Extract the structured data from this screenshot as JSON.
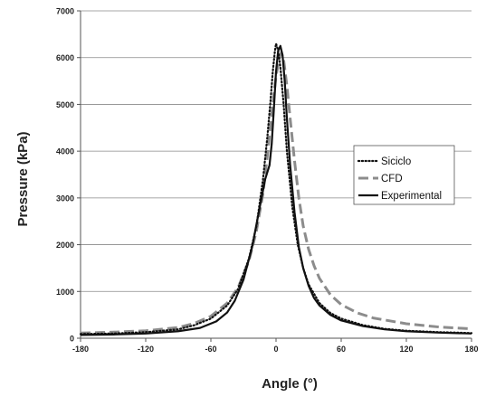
{
  "chart_data": {
    "type": "line",
    "title": "",
    "xlabel": "Angle (°)",
    "ylabel": "Pressure (kPa)",
    "xlim": [
      -180,
      180
    ],
    "ylim": [
      0,
      7000
    ],
    "x_ticks": [
      -180,
      -120,
      -60,
      0,
      60,
      120,
      180
    ],
    "y_ticks": [
      0,
      1000,
      2000,
      3000,
      4000,
      5000,
      6000,
      7000
    ],
    "grid": "horizontal",
    "legend_position": "right",
    "series": [
      {
        "name": "Siciclo",
        "style": "dotted",
        "color": "#111111",
        "points": [
          [
            -180,
            90
          ],
          [
            -150,
            100
          ],
          [
            -120,
            130
          ],
          [
            -90,
            190
          ],
          [
            -75,
            280
          ],
          [
            -60,
            420
          ],
          [
            -45,
            700
          ],
          [
            -35,
            1050
          ],
          [
            -25,
            1700
          ],
          [
            -18,
            2400
          ],
          [
            -12,
            3400
          ],
          [
            -8,
            4300
          ],
          [
            -5,
            5100
          ],
          [
            -3,
            5700
          ],
          [
            -1,
            6150
          ],
          [
            0,
            6300
          ],
          [
            2,
            6150
          ],
          [
            4,
            5800
          ],
          [
            7,
            5000
          ],
          [
            10,
            4000
          ],
          [
            15,
            2800
          ],
          [
            20,
            2000
          ],
          [
            25,
            1500
          ],
          [
            30,
            1150
          ],
          [
            40,
            750
          ],
          [
            50,
            540
          ],
          [
            60,
            420
          ],
          [
            80,
            280
          ],
          [
            100,
            200
          ],
          [
            120,
            160
          ],
          [
            150,
            130
          ],
          [
            180,
            110
          ]
        ]
      },
      {
        "name": "CFD",
        "style": "dashed",
        "color": "#8c8c8c",
        "points": [
          [
            -180,
            110
          ],
          [
            -150,
            130
          ],
          [
            -120,
            160
          ],
          [
            -90,
            230
          ],
          [
            -75,
            320
          ],
          [
            -60,
            470
          ],
          [
            -45,
            750
          ],
          [
            -35,
            1080
          ],
          [
            -25,
            1650
          ],
          [
            -18,
            2300
          ],
          [
            -12,
            3100
          ],
          [
            -8,
            3900
          ],
          [
            -4,
            4800
          ],
          [
            0,
            5600
          ],
          [
            3,
            6000
          ],
          [
            5,
            6100
          ],
          [
            7,
            5950
          ],
          [
            10,
            5400
          ],
          [
            13,
            4700
          ],
          [
            17,
            3800
          ],
          [
            21,
            3000
          ],
          [
            25,
            2400
          ],
          [
            30,
            1900
          ],
          [
            35,
            1550
          ],
          [
            40,
            1280
          ],
          [
            50,
            930
          ],
          [
            60,
            720
          ],
          [
            75,
            540
          ],
          [
            90,
            430
          ],
          [
            120,
            310
          ],
          [
            150,
            240
          ],
          [
            180,
            200
          ]
        ]
      },
      {
        "name": "Experimental",
        "style": "solid",
        "color": "#111111",
        "points": [
          [
            -180,
            70
          ],
          [
            -150,
            80
          ],
          [
            -120,
            100
          ],
          [
            -90,
            150
          ],
          [
            -70,
            220
          ],
          [
            -55,
            360
          ],
          [
            -45,
            550
          ],
          [
            -38,
            800
          ],
          [
            -30,
            1250
          ],
          [
            -22,
            1950
          ],
          [
            -15,
            2800
          ],
          [
            -10,
            3400
          ],
          [
            -6,
            3700
          ],
          [
            -4,
            4150
          ],
          [
            -2,
            4900
          ],
          [
            0,
            5700
          ],
          [
            2,
            6150
          ],
          [
            4,
            6250
          ],
          [
            6,
            6050
          ],
          [
            8,
            5500
          ],
          [
            10,
            4700
          ],
          [
            13,
            3700
          ],
          [
            17,
            2700
          ],
          [
            21,
            1950
          ],
          [
            25,
            1500
          ],
          [
            30,
            1120
          ],
          [
            35,
            860
          ],
          [
            40,
            700
          ],
          [
            50,
            500
          ],
          [
            60,
            380
          ],
          [
            80,
            260
          ],
          [
            100,
            190
          ],
          [
            120,
            150
          ],
          [
            150,
            120
          ],
          [
            180,
            100
          ]
        ]
      }
    ]
  }
}
